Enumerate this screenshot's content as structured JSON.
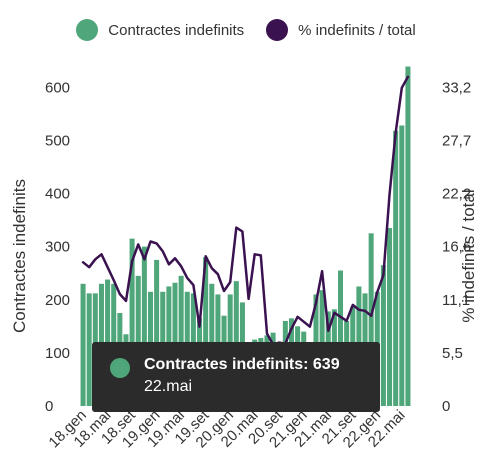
{
  "chart_data": {
    "type": "bar",
    "y_left_label": "Contractes indefinits",
    "y_right_label": "% indefinits / total",
    "y_left_ticks": [
      "0",
      "100",
      "200",
      "300",
      "400",
      "500",
      "600"
    ],
    "y_right_ticks": [
      "0",
      "5,5",
      "11,1",
      "16,6",
      "22,2",
      "27,7",
      "33,2"
    ],
    "ylim_left": [
      0,
      640
    ],
    "ylim_right": [
      0,
      34.3
    ],
    "x_tick_labels": [
      "18.gen",
      "18.mai",
      "18.set",
      "19.gen",
      "19.mai",
      "19.set",
      "20.gen",
      "20.mai",
      "20.set",
      "21.gen",
      "21.mai",
      "21.set",
      "22.gen",
      "22.mai"
    ],
    "x_tick_indices": [
      0,
      4,
      8,
      12,
      16,
      20,
      24,
      28,
      32,
      36,
      40,
      44,
      48,
      52
    ],
    "legend": [
      {
        "name": "Contractes indefinits",
        "color": "#4fa67a"
      },
      {
        "name": "% indefinits / total",
        "color": "#3b1250"
      }
    ],
    "series": [
      {
        "name": "Contractes indefinits",
        "kind": "bar",
        "axis": "left",
        "color": "#4fa67a",
        "values": [
          230,
          212,
          212,
          230,
          238,
          230,
          175,
          135,
          315,
          245,
          300,
          215,
          275,
          215,
          225,
          232,
          245,
          215,
          212,
          165,
          280,
          230,
          210,
          170,
          210,
          235,
          195,
          60,
          125,
          128,
          133,
          138,
          100,
          160,
          165,
          150,
          140,
          110,
          210,
          218,
          178,
          182,
          255,
          160,
          187,
          225,
          212,
          325,
          215,
          265,
          335,
          518,
          528,
          639
        ]
      },
      {
        "name": "% indefinits / total",
        "kind": "line",
        "axis": "right",
        "color": "#3b1250",
        "values": [
          14.5,
          14.0,
          14.8,
          15.3,
          14.0,
          12.7,
          11.3,
          10.6,
          14.6,
          16.3,
          14.8,
          16.6,
          16.4,
          15.6,
          14.3,
          14.9,
          14.1,
          12.9,
          12.2,
          8.0,
          15.1,
          13.9,
          13.3,
          11.6,
          12.5,
          18.0,
          17.6,
          10.8,
          15.3,
          15.2,
          7.3,
          6.2,
          6.4,
          6.3,
          7.8,
          9.0,
          8.5,
          8.0,
          10.4,
          13.6,
          7.6,
          9.4,
          9.0,
          8.6,
          10.2,
          9.7,
          9.6,
          9.1,
          11.5,
          13.2,
          21.3,
          27.6,
          32.1,
          33.2
        ]
      }
    ],
    "tooltip": {
      "title": "Contractes indefinits: 639",
      "subtitle": "22.mai"
    }
  }
}
